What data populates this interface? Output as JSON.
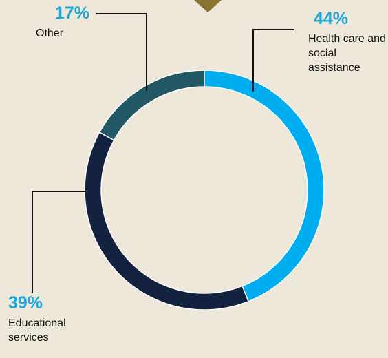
{
  "chart_data": {
    "type": "donut",
    "categories": [
      "Health care and social assistance",
      "Educational services",
      "Other"
    ],
    "values": [
      44,
      39,
      17
    ],
    "value_labels": [
      "44%",
      "39%",
      "17%"
    ],
    "colors": [
      "#00aeef",
      "#12223f",
      "#225866"
    ]
  }
}
